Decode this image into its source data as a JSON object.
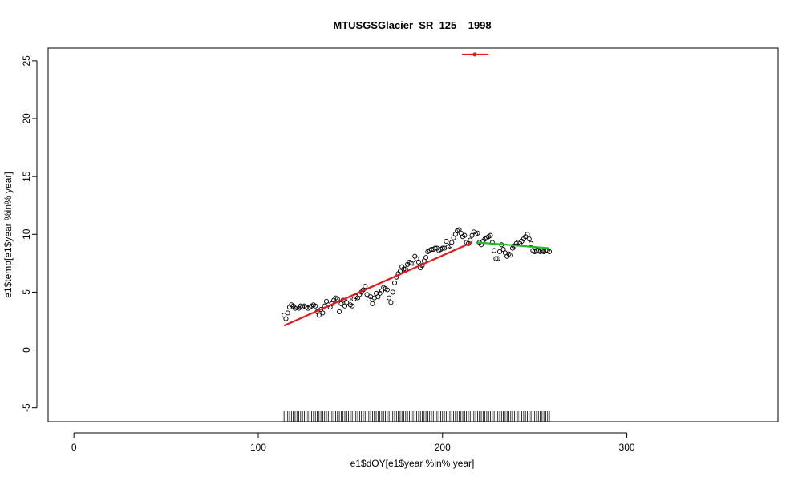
{
  "chart_data": {
    "type": "scatter",
    "title": "MTUSGSGlacier_SR_125 _ 1998",
    "x_label": "e1$dOY[e1$year %in% year]",
    "y_label": "e1$temp[e1$year %in% year]",
    "xlim": [
      -14,
      382
    ],
    "ylim": [
      -6.2,
      26.1
    ],
    "xticks": [
      0,
      100,
      200,
      300
    ],
    "yticks": [
      -5,
      0,
      5,
      10,
      15,
      20,
      25
    ],
    "rug": true,
    "x": [
      114,
      115,
      116,
      117,
      118,
      119,
      120,
      121,
      122,
      123,
      124,
      125,
      126,
      127,
      128,
      129,
      130,
      131,
      132,
      133,
      134,
      135,
      136,
      137,
      138,
      139,
      140,
      141,
      142,
      143,
      144,
      145,
      146,
      147,
      148,
      149,
      150,
      151,
      152,
      153,
      154,
      155,
      156,
      157,
      158,
      159,
      160,
      161,
      162,
      163,
      164,
      165,
      166,
      167,
      168,
      169,
      170,
      171,
      172,
      173,
      174,
      175,
      176,
      177,
      178,
      179,
      180,
      181,
      182,
      183,
      184,
      185,
      186,
      187,
      188,
      189,
      190,
      191,
      192,
      193,
      194,
      195,
      196,
      197,
      198,
      199,
      200,
      201,
      202,
      203,
      204,
      205,
      206,
      207,
      208,
      209,
      210,
      211,
      212,
      213,
      214,
      215,
      216,
      217,
      218,
      219,
      220,
      221,
      222,
      223,
      224,
      225,
      226,
      227,
      228,
      229,
      230,
      231,
      232,
      233,
      234,
      235,
      236,
      237,
      238,
      239,
      240,
      241,
      242,
      243,
      244,
      245,
      246,
      247,
      248,
      249,
      250,
      251,
      252,
      253,
      254,
      255,
      256,
      257,
      258
    ],
    "values": [
      3.0,
      2.7,
      3.2,
      3.7,
      3.9,
      3.8,
      3.6,
      3.7,
      3.6,
      3.8,
      3.7,
      3.8,
      3.7,
      3.6,
      3.7,
      3.8,
      3.9,
      3.8,
      3.3,
      3.0,
      3.5,
      3.2,
      3.8,
      4.2,
      3.9,
      3.7,
      4.0,
      4.3,
      4.5,
      4.4,
      3.3,
      4.0,
      4.3,
      3.8,
      4.1,
      4.4,
      3.9,
      3.8,
      4.4,
      4.6,
      4.5,
      4.8,
      5.0,
      5.2,
      5.5,
      4.8,
      4.4,
      4.6,
      4.0,
      4.5,
      4.9,
      4.6,
      4.9,
      5.1,
      5.4,
      5.3,
      5.2,
      4.5,
      4.1,
      5.0,
      5.8,
      6.3,
      6.6,
      6.8,
      7.2,
      7.0,
      7.0,
      7.4,
      7.6,
      7.5,
      7.5,
      8.1,
      7.9,
      7.6,
      7.1,
      7.3,
      7.7,
      8.0,
      8.5,
      8.6,
      8.7,
      8.7,
      8.8,
      8.8,
      8.6,
      8.7,
      8.8,
      8.8,
      9.4,
      8.9,
      9.0,
      9.3,
      9.7,
      10.0,
      10.3,
      10.4,
      10.1,
      9.8,
      9.9,
      9.3,
      9.2,
      9.5,
      9.9,
      10.2,
      10.0,
      10.1,
      9.3,
      9.1,
      9.4,
      9.6,
      9.7,
      9.8,
      9.9,
      9.3,
      8.6,
      7.9,
      7.9,
      8.5,
      9.1,
      8.7,
      8.4,
      8.1,
      8.3,
      8.2,
      8.8,
      9.0,
      9.2,
      9.3,
      9.2,
      9.4,
      9.6,
      9.8,
      10.0,
      9.6,
      9.2,
      8.6,
      8.5,
      8.6,
      8.6,
      8.5,
      8.6,
      8.5,
      8.6,
      8.6,
      8.5
    ],
    "point_color": "#000000",
    "lines": [
      {
        "color": "#e31a1c",
        "x": [
          114,
          216
        ],
        "y": [
          2.1,
          9.3
        ]
      },
      {
        "color": "#22bb22",
        "x": [
          218,
          235,
          250,
          258
        ],
        "y": [
          9.3,
          9.1,
          8.9,
          8.8
        ]
      }
    ],
    "interval": {
      "color": "#e31a1c",
      "x": 217.5,
      "y": 25.55,
      "xlow": 210.5,
      "xhigh": 225
    }
  }
}
